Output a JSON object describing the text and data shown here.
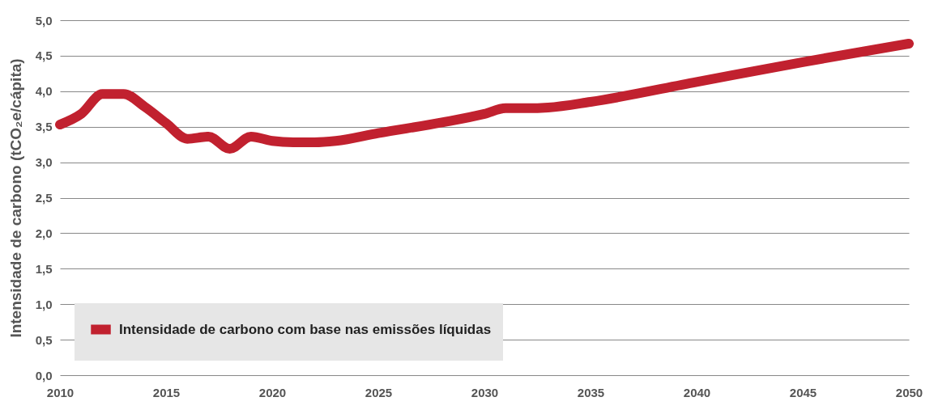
{
  "chart_data": {
    "type": "line",
    "ylabel": "Intensidade de carbono (tCO₂e/cápita)",
    "x": [
      2010,
      2011,
      2012,
      2013,
      2014,
      2015,
      2016,
      2017,
      2018,
      2019,
      2020,
      2021,
      2022,
      2023,
      2025,
      2028,
      2030,
      2031,
      2032,
      2033,
      2035,
      2040,
      2045,
      2050
    ],
    "series": [
      {
        "name": "Intensidade de carbono com base nas emissões líquidas",
        "color": "#c1212f",
        "values": [
          3.53,
          3.68,
          3.96,
          3.96,
          3.78,
          3.55,
          3.33,
          3.36,
          3.19,
          3.36,
          3.3,
          3.28,
          3.28,
          3.3,
          3.41,
          3.56,
          3.68,
          3.76,
          3.76,
          3.77,
          3.85,
          4.13,
          4.41,
          4.67
        ]
      }
    ],
    "xlim": [
      2010,
      2050
    ],
    "xticks": [
      2010,
      2015,
      2020,
      2025,
      2030,
      2035,
      2040,
      2045,
      2050
    ],
    "ylim": [
      0,
      5
    ],
    "yticks": [
      {
        "value": 0,
        "label": "0,0"
      },
      {
        "value": 0.5,
        "label": "0,5"
      },
      {
        "value": 1,
        "label": "1,0"
      },
      {
        "value": 1.5,
        "label": "1,5"
      },
      {
        "value": 2,
        "label": "2,0"
      },
      {
        "value": 2.5,
        "label": "2,5"
      },
      {
        "value": 3,
        "label": "3,0"
      },
      {
        "value": 3.5,
        "label": "3,5"
      },
      {
        "value": 4,
        "label": "4,0"
      },
      {
        "value": 4.5,
        "label": "4,5"
      },
      {
        "value": 5,
        "label": "5,0"
      }
    ],
    "grid": "y",
    "legend": "bottom left",
    "line_style": "solid"
  }
}
